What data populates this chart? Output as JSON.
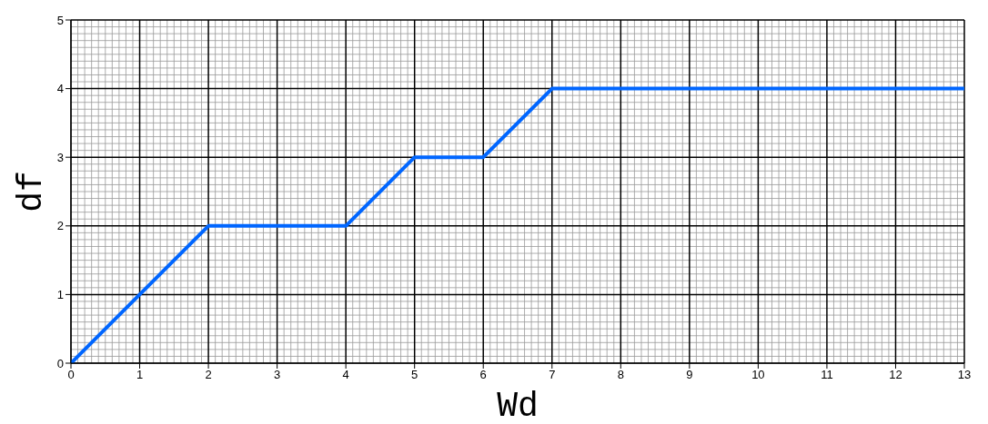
{
  "chart_data": {
    "type": "line",
    "xlabel": "Wd",
    "ylabel": "df",
    "x": [
      0,
      1,
      2,
      4,
      5,
      6,
      7,
      13
    ],
    "series": [
      {
        "color": "#0066ff",
        "values": [
          0,
          1,
          2,
          2,
          3,
          3,
          4,
          4
        ]
      }
    ],
    "xlim": [
      0,
      13
    ],
    "xticks": [
      0,
      1,
      2,
      3,
      4,
      5,
      6,
      7,
      8,
      9,
      10,
      11,
      12,
      13
    ],
    "ylim": [
      0,
      5
    ],
    "yticks": [
      0,
      1,
      2,
      3,
      4,
      5
    ],
    "grid": true,
    "marker": "none",
    "line_style": "solid"
  }
}
